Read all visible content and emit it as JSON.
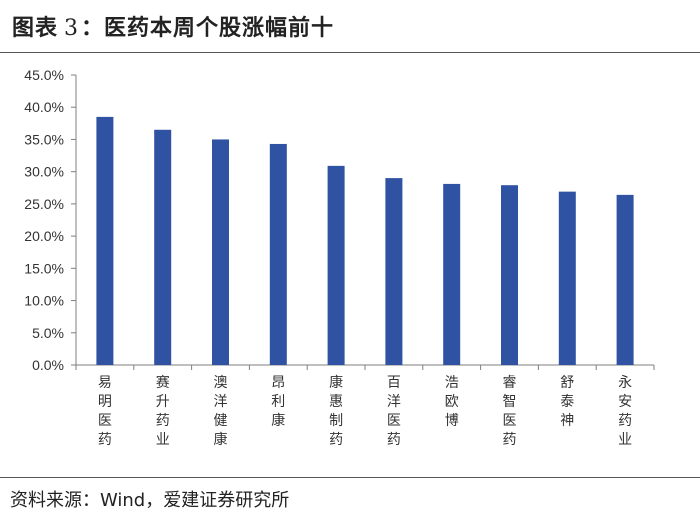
{
  "header": {
    "title_prefix": "图表",
    "figure_number": "3",
    "title_suffix": "：医药本周个股涨幅前十"
  },
  "footer": {
    "source": "资料来源：Wind，爱建证券研究所"
  },
  "chart_data": {
    "type": "bar",
    "title": "医药本周个股涨幅前十",
    "xlabel": "",
    "ylabel": "",
    "categories": [
      "易明医药",
      "赛升药业",
      "澳洋健康",
      "昂利康",
      "康惠制药",
      "百洋医药",
      "浩欧博",
      "睿智医药",
      "舒泰神",
      "永安药业"
    ],
    "values": [
      38.5,
      36.5,
      35.0,
      34.3,
      30.9,
      29.0,
      28.1,
      27.9,
      26.9,
      26.4
    ],
    "ylim": [
      0,
      45
    ],
    "ytick_step": 5,
    "ytick_labels": [
      "0.0%",
      "5.0%",
      "10.0%",
      "15.0%",
      "20.0%",
      "25.0%",
      "30.0%",
      "35.0%",
      "40.0%",
      "45.0%"
    ],
    "unit": "%",
    "grid": false,
    "legend": "none",
    "bar_color": "#2f52a3",
    "axis_color": "#7f7f7f"
  }
}
